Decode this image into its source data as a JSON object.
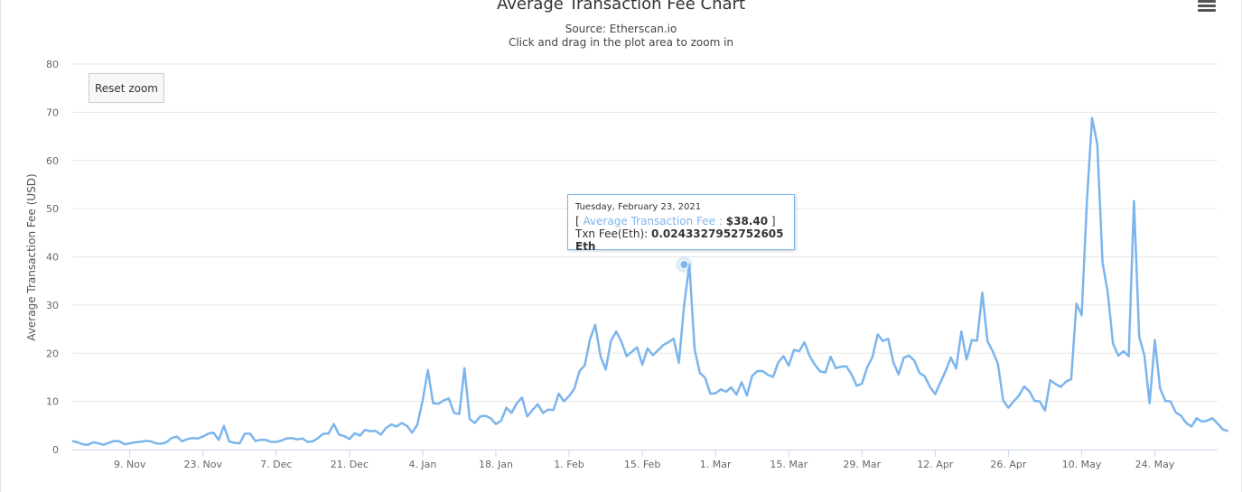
{
  "chart_data": {
    "type": "line",
    "title": "Average Transaction Fee Chart",
    "subtitles": [
      "Source: Etherscan.io",
      "Click and drag in the plot area to zoom in"
    ],
    "ylabel": "Average Transaction Fee (USD)",
    "xlabel": "",
    "ylim": [
      0,
      80
    ],
    "yticks": [
      0,
      10,
      20,
      30,
      40,
      50,
      60,
      70,
      80
    ],
    "grid": true,
    "legend": "none",
    "x_start": "2020-10-29",
    "x_end": "2021-06-05",
    "x_ticks": [
      {
        "date": "2020-11-09",
        "label": "9. Nov"
      },
      {
        "date": "2020-11-23",
        "label": "23. Nov"
      },
      {
        "date": "2020-12-07",
        "label": "7. Dec"
      },
      {
        "date": "2020-12-21",
        "label": "21. Dec"
      },
      {
        "date": "2021-01-04",
        "label": "4. Jan"
      },
      {
        "date": "2021-01-18",
        "label": "18. Jan"
      },
      {
        "date": "2021-02-01",
        "label": "1. Feb"
      },
      {
        "date": "2021-02-15",
        "label": "15. Feb"
      },
      {
        "date": "2021-03-01",
        "label": "1. Mar"
      },
      {
        "date": "2021-03-15",
        "label": "15. Mar"
      },
      {
        "date": "2021-03-29",
        "label": "29. Mar"
      },
      {
        "date": "2021-04-12",
        "label": "12. Apr"
      },
      {
        "date": "2021-04-26",
        "label": "26. Apr"
      },
      {
        "date": "2021-05-10",
        "label": "10. May"
      },
      {
        "date": "2021-05-24",
        "label": "24. May"
      }
    ],
    "series": [
      {
        "color": "#7cb5ec",
        "start_date": "2020-10-29",
        "values": [
          1.8,
          1.5,
          1.1,
          1.0,
          1.5,
          1.3,
          1.0,
          1.4,
          1.8,
          1.7,
          1.1,
          1.3,
          1.5,
          1.6,
          1.8,
          1.7,
          1.3,
          1.2,
          1.5,
          2.4,
          2.7,
          1.7,
          2.2,
          2.4,
          2.3,
          2.7,
          3.3,
          3.5,
          2.0,
          4.9,
          1.7,
          1.4,
          1.3,
          3.3,
          3.3,
          1.8,
          2.0,
          2.0,
          1.6,
          1.6,
          1.9,
          2.3,
          2.4,
          2.1,
          2.3,
          1.6,
          1.7,
          2.4,
          3.3,
          3.3,
          5.3,
          3.1,
          2.8,
          2.2,
          3.4,
          2.9,
          4.1,
          3.8,
          3.9,
          3.1,
          4.5,
          5.2,
          4.8,
          5.5,
          4.9,
          3.5,
          5.2,
          10.2,
          16.5,
          9.6,
          9.5,
          10.2,
          10.6,
          7.6,
          7.4,
          16.9,
          6.3,
          5.5,
          6.9,
          7.0,
          6.5,
          5.3,
          6.0,
          8.7,
          7.6,
          9.6,
          10.8,
          6.9,
          8.2,
          9.4,
          7.6,
          8.3,
          8.2,
          11.6,
          10.0,
          11.1,
          12.6,
          16.3,
          17.5,
          22.9,
          25.9,
          19.4,
          16.6,
          22.6,
          24.5,
          22.4,
          19.4,
          20.3,
          21.2,
          17.6,
          21.0,
          19.6,
          20.6,
          21.7,
          22.3,
          23.0,
          18.0,
          30.0,
          38.4,
          20.8,
          15.9,
          14.9,
          11.6,
          11.7,
          12.5,
          12.0,
          12.9,
          11.4,
          14.0,
          11.2,
          15.3,
          16.3,
          16.3,
          15.5,
          15.1,
          18.1,
          19.4,
          17.4,
          20.7,
          20.4,
          22.3,
          19.4,
          17.6,
          16.2,
          16.0,
          19.3,
          16.9,
          17.2,
          17.3,
          15.6,
          13.2,
          13.7,
          17.1,
          19.2,
          23.9,
          22.5,
          23.0,
          18.1,
          15.6,
          19.1,
          19.5,
          18.5,
          15.9,
          15.2,
          13.0,
          11.5,
          13.9,
          16.3,
          19.1,
          16.8,
          24.5,
          18.7,
          22.7,
          22.6,
          32.6,
          22.5,
          20.4,
          17.8,
          10.2,
          8.7,
          10.0,
          11.2,
          13.1,
          12.1,
          10.1,
          10.0,
          8.1,
          14.4,
          13.6,
          13.0,
          14.1,
          14.6,
          30.3,
          27.9,
          51.5,
          68.8,
          63.4,
          38.8,
          32.6,
          22.0,
          19.5,
          20.4,
          19.4,
          51.6,
          23.4,
          19.6,
          9.6,
          22.7,
          12.7,
          10.1,
          10.0,
          7.7,
          7.0,
          5.5,
          4.8,
          6.5,
          5.8,
          6.0,
          6.5,
          5.4,
          4.2,
          3.8
        ]
      }
    ],
    "tooltip": {
      "date": "Tuesday, February 23, 2021",
      "series_name": "Average Transaction Fee",
      "value": "$38.40",
      "eth_label": "Txn Fee(Eth):",
      "eth_value": "0.0243327952752605 Eth",
      "point_date": "2021-02-23",
      "point_value": 38.4
    }
  },
  "ui": {
    "reset_zoom_label": "Reset zoom",
    "menu_icon": "hamburger-menu-icon"
  }
}
